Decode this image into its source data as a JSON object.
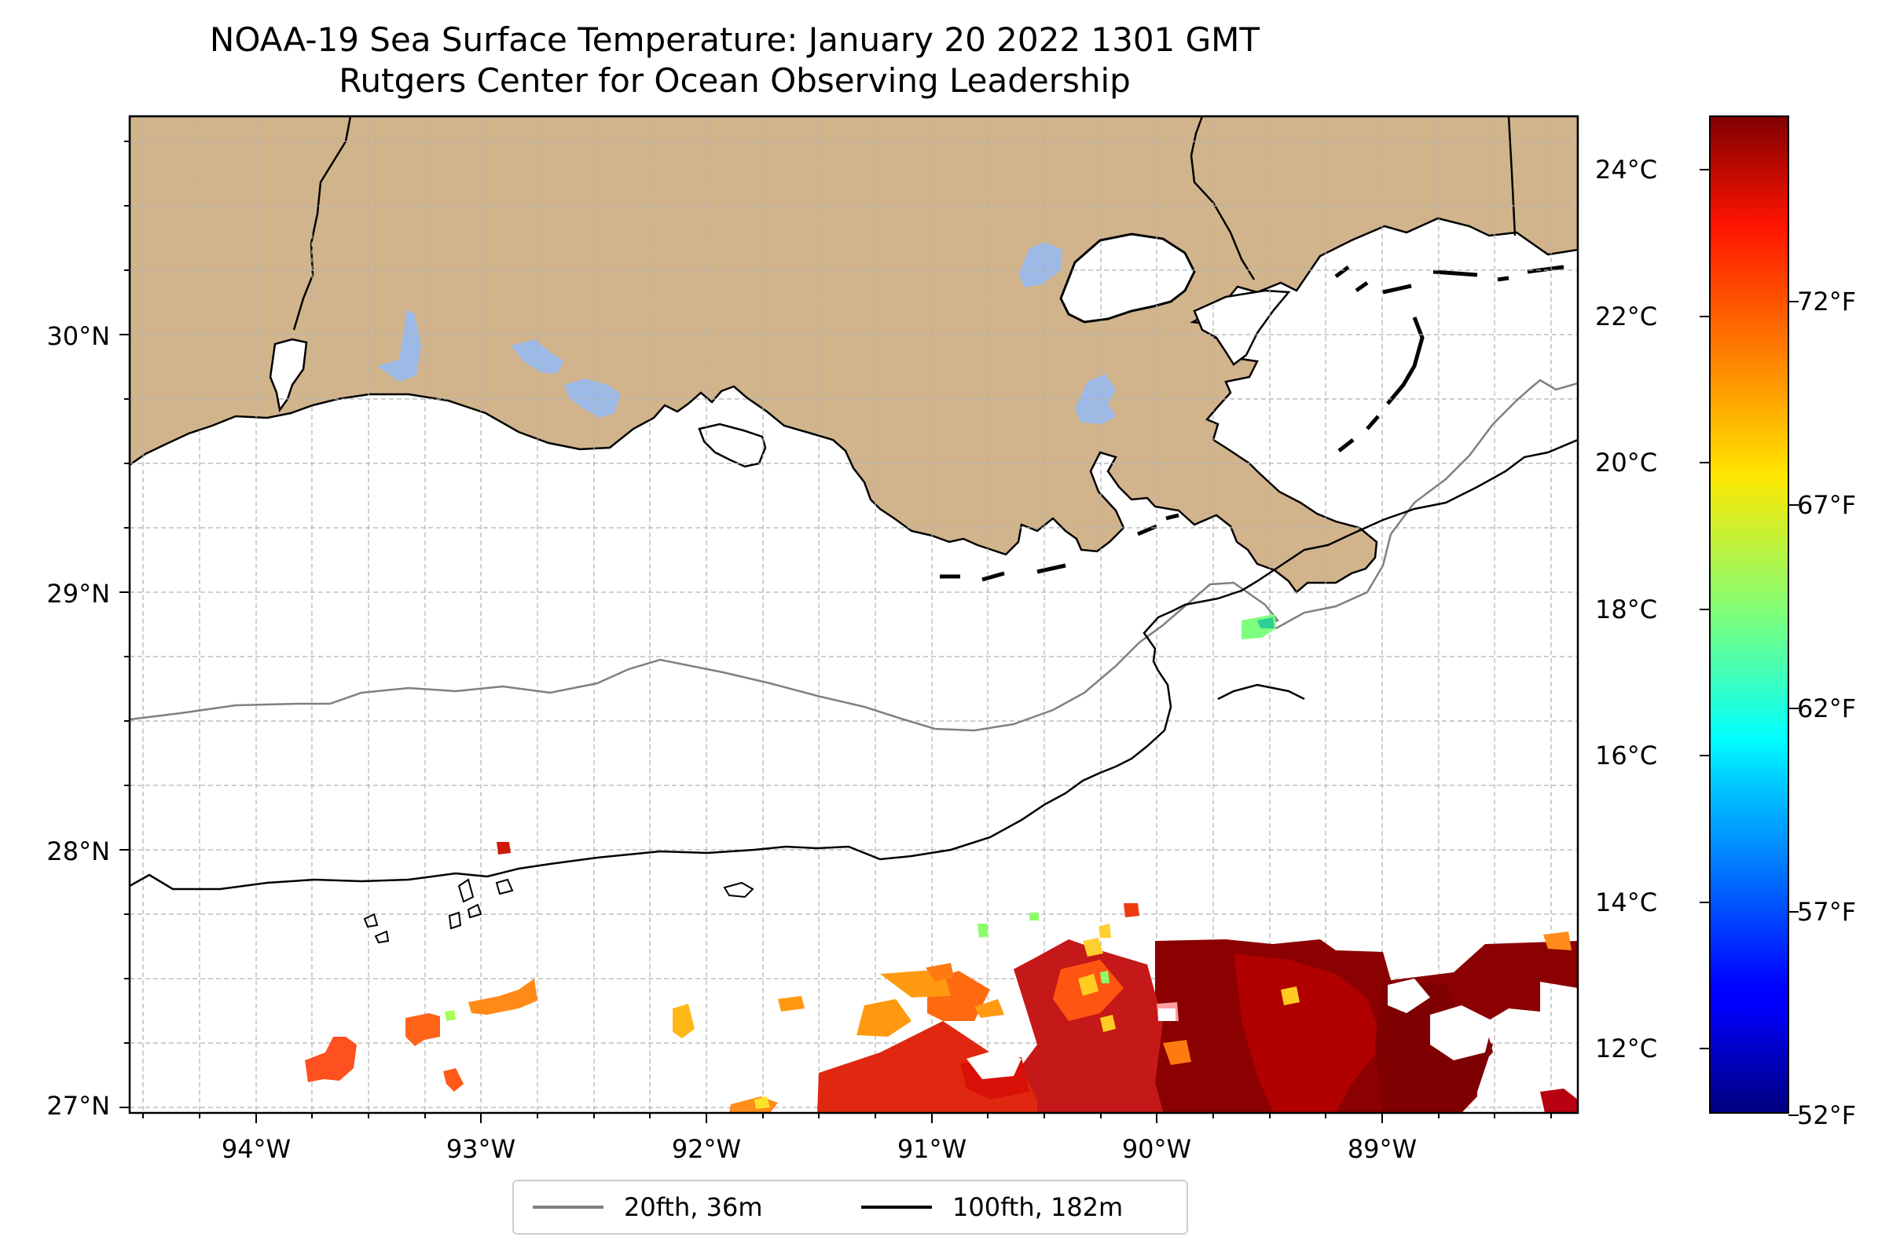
{
  "title": {
    "line1": "NOAA-19 Sea Surface Temperature: January 20 2022 1301 GMT",
    "line2": "Rutgers Center for Ocean Observing Leadership"
  },
  "map": {
    "lon_range": [
      -94.55,
      -88.05
    ],
    "lat_range": [
      26.93,
      30.85
    ],
    "lon_labels": [
      "94°W",
      "93°W",
      "92°W",
      "91°W",
      "90°W",
      "89°W"
    ],
    "lat_labels": [
      "30°N",
      "29°N",
      "28°N",
      "27°N"
    ],
    "gridlines": true,
    "colors": {
      "land": "#d2b48c",
      "lakes": "#9db9e6",
      "ocean": "#ffffff",
      "coastline": "#000000"
    }
  },
  "legend": {
    "placement": "lower-center",
    "items": [
      {
        "label": "20fth, 36m",
        "color": "#808080"
      },
      {
        "label": "100fth, 182m",
        "color": "#000000"
      }
    ]
  },
  "colorbar": {
    "colormap": "jet",
    "range_c": [
      11.1,
      24.7
    ],
    "celsius_labels": [
      "24°C",
      "22°C",
      "20°C",
      "18°C",
      "16°C",
      "14°C",
      "12°C"
    ],
    "fahrenheit_labels": [
      "72°F",
      "67°F",
      "62°F",
      "57°F",
      "52°F"
    ]
  }
}
